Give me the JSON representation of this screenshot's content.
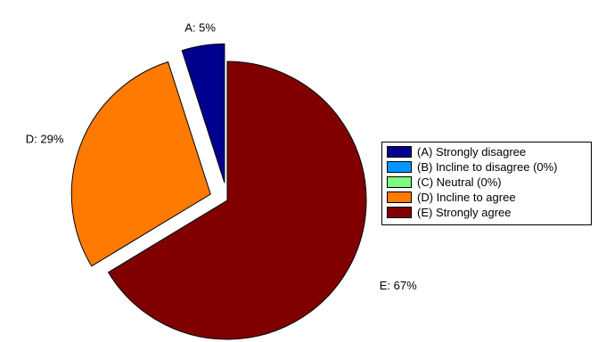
{
  "chart_data": {
    "type": "pie",
    "categories": [
      "A",
      "B",
      "C",
      "D",
      "E"
    ],
    "values": [
      5,
      0,
      0,
      29,
      67
    ],
    "slice_labels": [
      "A: 5%",
      "",
      "",
      "D: 29%",
      "E: 67%"
    ],
    "exploded": [
      true,
      false,
      false,
      true,
      false
    ],
    "colors": [
      "#00008f",
      "#0096ff",
      "#7fff7f",
      "#ff7a00",
      "#800000"
    ],
    "legend": {
      "placement": "right",
      "entries": [
        "(A) Strongly disagree",
        "(B) Incline to disagree (0%)",
        "(C) Neutral (0%)",
        "(D) Incline to agree",
        "(E) Strongly agree"
      ]
    }
  }
}
